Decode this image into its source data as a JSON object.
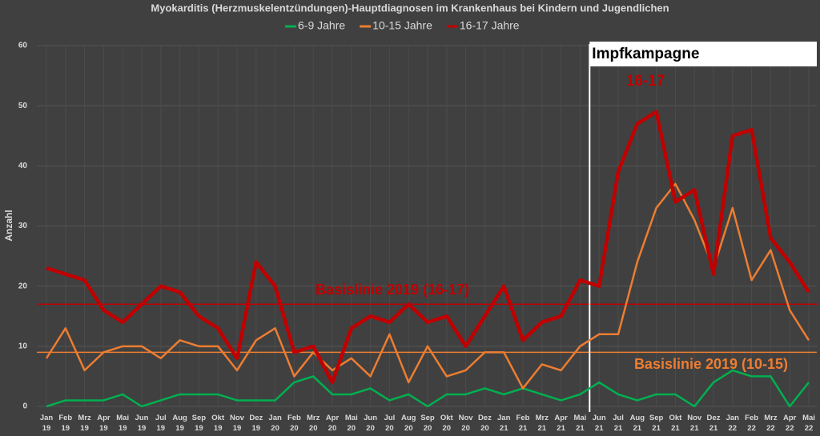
{
  "chart_data": {
    "type": "line",
    "title": "Myokarditis (Herzmuskelentzündungen)-Hauptdiagnosen im Krankenhaus bei Kindern und Jugendlichen",
    "y_label": "Anzahl",
    "categories": [
      "Jan 19",
      "Feb 19",
      "Mrz 19",
      "Apr 19",
      "Mai 19",
      "Jun 19",
      "Jul 19",
      "Aug 19",
      "Sep 19",
      "Okt 19",
      "Nov 19",
      "Dez 19",
      "Jan 20",
      "Feb 20",
      "Mrz 20",
      "Apr 20",
      "Mai 20",
      "Jun 20",
      "Jul 20",
      "Aug 20",
      "Sep 20",
      "Okt 20",
      "Nov 20",
      "Dez 20",
      "Jan 21",
      "Feb 21",
      "Mrz 21",
      "Apr 21",
      "Mai 21",
      "Jun 21",
      "Jul 21",
      "Aug 21",
      "Sep 21",
      "Okt 21",
      "Nov 21",
      "Dez 21",
      "Jan 22",
      "Feb 22",
      "Mrz 22",
      "Apr 22",
      "Mai 22"
    ],
    "series": [
      {
        "name": "6-9 Jahre",
        "color": "#00b050",
        "width": 2.5,
        "values": [
          0,
          1,
          1,
          1,
          2,
          0,
          1,
          2,
          2,
          2,
          1,
          1,
          1,
          4,
          5,
          2,
          2,
          3,
          1,
          2,
          0,
          2,
          2,
          3,
          2,
          3,
          2,
          1,
          2,
          4,
          2,
          1,
          2,
          2,
          0,
          4,
          6,
          5,
          5,
          0,
          4
        ]
      },
      {
        "name": "10-15 Jahre",
        "color": "#ed7d31",
        "width": 2.5,
        "values": [
          8,
          13,
          6,
          9,
          10,
          10,
          8,
          11,
          10,
          10,
          6,
          11,
          13,
          5,
          9,
          6,
          8,
          5,
          12,
          4,
          10,
          5,
          6,
          9,
          9,
          3,
          7,
          6,
          10,
          12,
          12,
          24,
          33,
          37,
          31,
          23,
          33,
          21,
          26,
          16,
          11
        ]
      },
      {
        "name": "16-17 Jahre",
        "color": "#c00000",
        "width": 4.5,
        "values": [
          23,
          22,
          21,
          16,
          14,
          17,
          20,
          19,
          15,
          13,
          8,
          24,
          20,
          9,
          10,
          4,
          13,
          15,
          14,
          17,
          14,
          15,
          10,
          15,
          20,
          11,
          14,
          15,
          21,
          20,
          39,
          47,
          49,
          34,
          36,
          22,
          45,
          46,
          28,
          24,
          19
        ]
      }
    ],
    "baselines": [
      {
        "label": "Basislinie 2019 (16-17)",
        "value": 17,
        "color": "#c00000"
      },
      {
        "label": "Basislinie 2019 (10-15)",
        "value": 9,
        "color": "#ed7d31"
      }
    ],
    "campaign_label": "Impfkampagne",
    "peak_label": "16-17",
    "ylim": [
      0,
      60
    ],
    "yticks": [
      0,
      10,
      20,
      30,
      40,
      50,
      60
    ],
    "grid": true
  }
}
